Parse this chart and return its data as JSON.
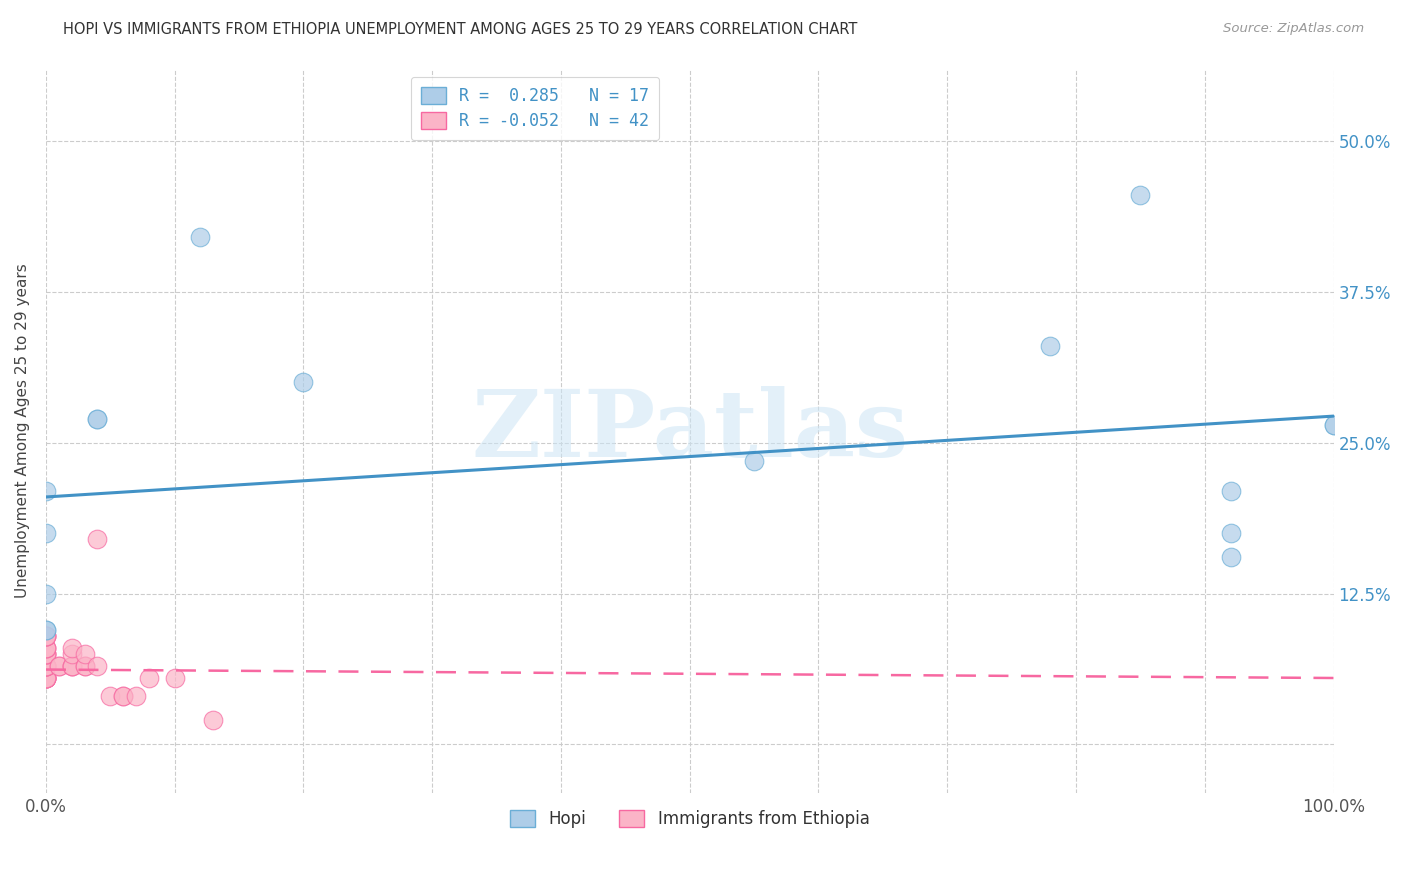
{
  "title": "HOPI VS IMMIGRANTS FROM ETHIOPIA UNEMPLOYMENT AMONG AGES 25 TO 29 YEARS CORRELATION CHART",
  "source": "Source: ZipAtlas.com",
  "ylabel_label": "Unemployment Among Ages 25 to 29 years",
  "hopi_scatter": [
    [
      0.0,
      0.21
    ],
    [
      0.0,
      0.175
    ],
    [
      0.0,
      0.125
    ],
    [
      0.0,
      0.095
    ],
    [
      0.0,
      0.095
    ],
    [
      0.04,
      0.27
    ],
    [
      0.04,
      0.27
    ],
    [
      0.12,
      0.42
    ],
    [
      0.2,
      0.3
    ],
    [
      0.55,
      0.235
    ],
    [
      0.78,
      0.33
    ],
    [
      0.85,
      0.455
    ],
    [
      0.92,
      0.21
    ],
    [
      0.92,
      0.175
    ],
    [
      0.92,
      0.155
    ],
    [
      1.0,
      0.265
    ],
    [
      1.0,
      0.265
    ]
  ],
  "ethiopia_scatter": [
    [
      0.0,
      0.055
    ],
    [
      0.0,
      0.055
    ],
    [
      0.0,
      0.055
    ],
    [
      0.0,
      0.055
    ],
    [
      0.0,
      0.055
    ],
    [
      0.0,
      0.055
    ],
    [
      0.0,
      0.055
    ],
    [
      0.0,
      0.065
    ],
    [
      0.0,
      0.065
    ],
    [
      0.0,
      0.065
    ],
    [
      0.0,
      0.065
    ],
    [
      0.0,
      0.065
    ],
    [
      0.0,
      0.075
    ],
    [
      0.0,
      0.075
    ],
    [
      0.0,
      0.075
    ],
    [
      0.0,
      0.075
    ],
    [
      0.0,
      0.08
    ],
    [
      0.0,
      0.08
    ],
    [
      0.0,
      0.08
    ],
    [
      0.0,
      0.09
    ],
    [
      0.0,
      0.09
    ],
    [
      0.0,
      0.09
    ],
    [
      0.0,
      0.09
    ],
    [
      0.01,
      0.065
    ],
    [
      0.01,
      0.065
    ],
    [
      0.02,
      0.065
    ],
    [
      0.02,
      0.065
    ],
    [
      0.02,
      0.065
    ],
    [
      0.02,
      0.075
    ],
    [
      0.02,
      0.08
    ],
    [
      0.03,
      0.065
    ],
    [
      0.03,
      0.065
    ],
    [
      0.03,
      0.075
    ],
    [
      0.04,
      0.065
    ],
    [
      0.04,
      0.17
    ],
    [
      0.05,
      0.04
    ],
    [
      0.06,
      0.04
    ],
    [
      0.06,
      0.04
    ],
    [
      0.07,
      0.04
    ],
    [
      0.08,
      0.055
    ],
    [
      0.1,
      0.055
    ],
    [
      0.13,
      0.02
    ]
  ],
  "hopi_line": {
    "x0": 0.0,
    "y0": 0.205,
    "x1": 1.0,
    "y1": 0.272
  },
  "ethiopia_line": {
    "x0": 0.0,
    "y0": 0.062,
    "x1": 1.0,
    "y1": 0.055
  },
  "hopi_color": "#aecde8",
  "hopi_edge_color": "#6baed6",
  "hopi_line_color": "#4292c6",
  "ethiopia_color": "#fbb4c7",
  "ethiopia_edge_color": "#f768a1",
  "ethiopia_line_color": "#f768a1",
  "xlim": [
    0.0,
    1.0
  ],
  "ylim": [
    -0.04,
    0.56
  ],
  "ytick_vals": [
    0.0,
    0.125,
    0.25,
    0.375,
    0.5
  ],
  "ytick_labels_right": [
    "",
    "12.5%",
    "25.0%",
    "37.5%",
    "50.0%"
  ],
  "xtick_vals": [
    0.0,
    0.1,
    0.2,
    0.3,
    0.4,
    0.5,
    0.6,
    0.7,
    0.8,
    0.9,
    1.0
  ],
  "xtick_labels": [
    "0.0%",
    "",
    "",
    "",
    "",
    "",
    "",
    "",
    "",
    "",
    "100.0%"
  ],
  "watermark_text": "ZIPatlas",
  "legend_r1": "R =  0.285   N = 17",
  "legend_r2": "R = -0.052   N = 42",
  "bottom_legend_1": "Hopi",
  "bottom_legend_2": "Immigrants from Ethiopia",
  "background_color": "#ffffff",
  "tick_color": "#555555",
  "right_tick_color": "#4292c6",
  "grid_color": "#cccccc"
}
